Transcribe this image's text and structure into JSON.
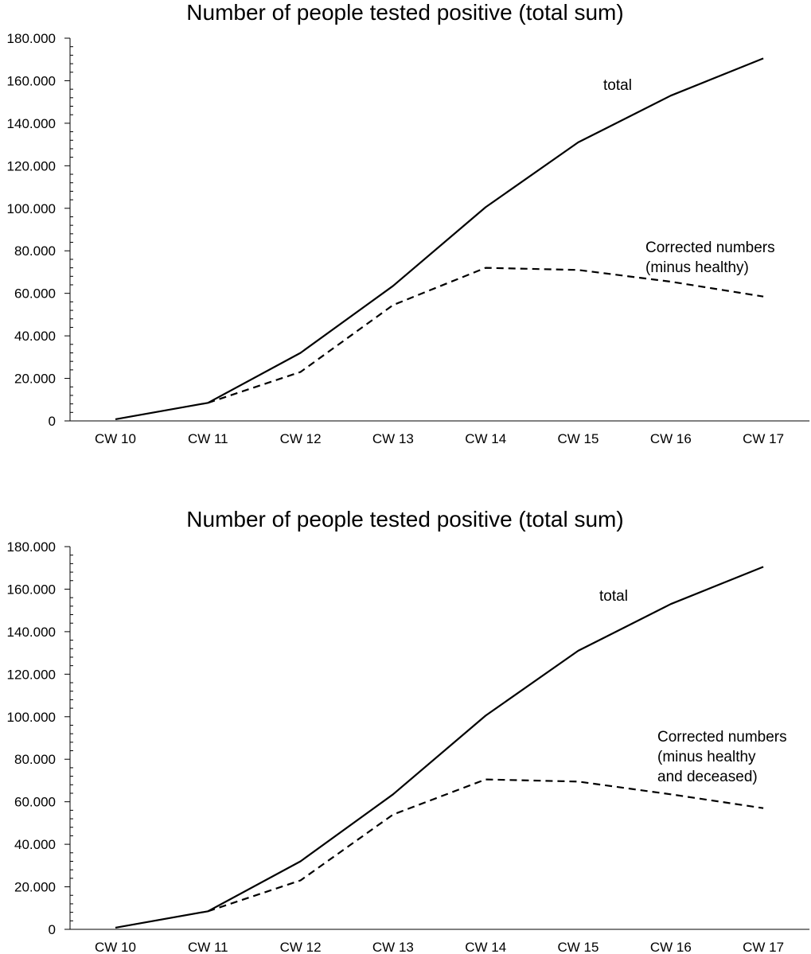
{
  "chart_data": [
    {
      "type": "line",
      "title": "Number of people tested positive (total sum)",
      "categories": [
        "CW 10",
        "CW 11",
        "CW 12",
        "CW 13",
        "CW 14",
        "CW 15",
        "CW 16",
        "CW 17"
      ],
      "ylim": [
        0,
        180000
      ],
      "yticks": [
        0,
        20000,
        40000,
        60000,
        80000,
        100000,
        120000,
        140000,
        160000,
        180000
      ],
      "ytick_labels": [
        "0",
        "20.000",
        "40.000",
        "60.000",
        "80.000",
        "100.000",
        "120.000",
        "140.000",
        "160.000",
        "180.000"
      ],
      "grid": false,
      "series": [
        {
          "name": "total",
          "style": "solid",
          "values": [
            800,
            8500,
            32000,
            63500,
            100500,
            131000,
            153000,
            170500
          ]
        },
        {
          "name": "Corrected numbers (minus healthy)",
          "style": "dashed",
          "values": [
            null,
            8500,
            23000,
            54500,
            72000,
            71000,
            65500,
            58500
          ]
        }
      ],
      "annotations": {
        "total_label": [
          "total"
        ],
        "corrected_label": [
          "Corrected numbers",
          "(minus healthy)"
        ]
      }
    },
    {
      "type": "line",
      "title": "Number of people tested positive (total sum)",
      "categories": [
        "CW 10",
        "CW 11",
        "CW 12",
        "CW 13",
        "CW 14",
        "CW 15",
        "CW 16",
        "CW 17"
      ],
      "ylim": [
        0,
        180000
      ],
      "yticks": [
        0,
        20000,
        40000,
        60000,
        80000,
        100000,
        120000,
        140000,
        160000,
        180000
      ],
      "ytick_labels": [
        "0",
        "20.000",
        "40.000",
        "60.000",
        "80.000",
        "100.000",
        "120.000",
        "140.000",
        "160.000",
        "180.000"
      ],
      "grid": false,
      "series": [
        {
          "name": "total",
          "style": "solid",
          "values": [
            800,
            8500,
            32000,
            63500,
            100500,
            131000,
            153000,
            170500
          ]
        },
        {
          "name": "Corrected numbers (minus healthy and deceased)",
          "style": "dashed",
          "values": [
            null,
            8500,
            23000,
            54000,
            70500,
            69500,
            63500,
            57000
          ]
        }
      ],
      "annotations": {
        "total_label": [
          "total"
        ],
        "corrected_label": [
          "Corrected numbers",
          "(minus healthy",
          "and deceased)"
        ]
      }
    }
  ]
}
